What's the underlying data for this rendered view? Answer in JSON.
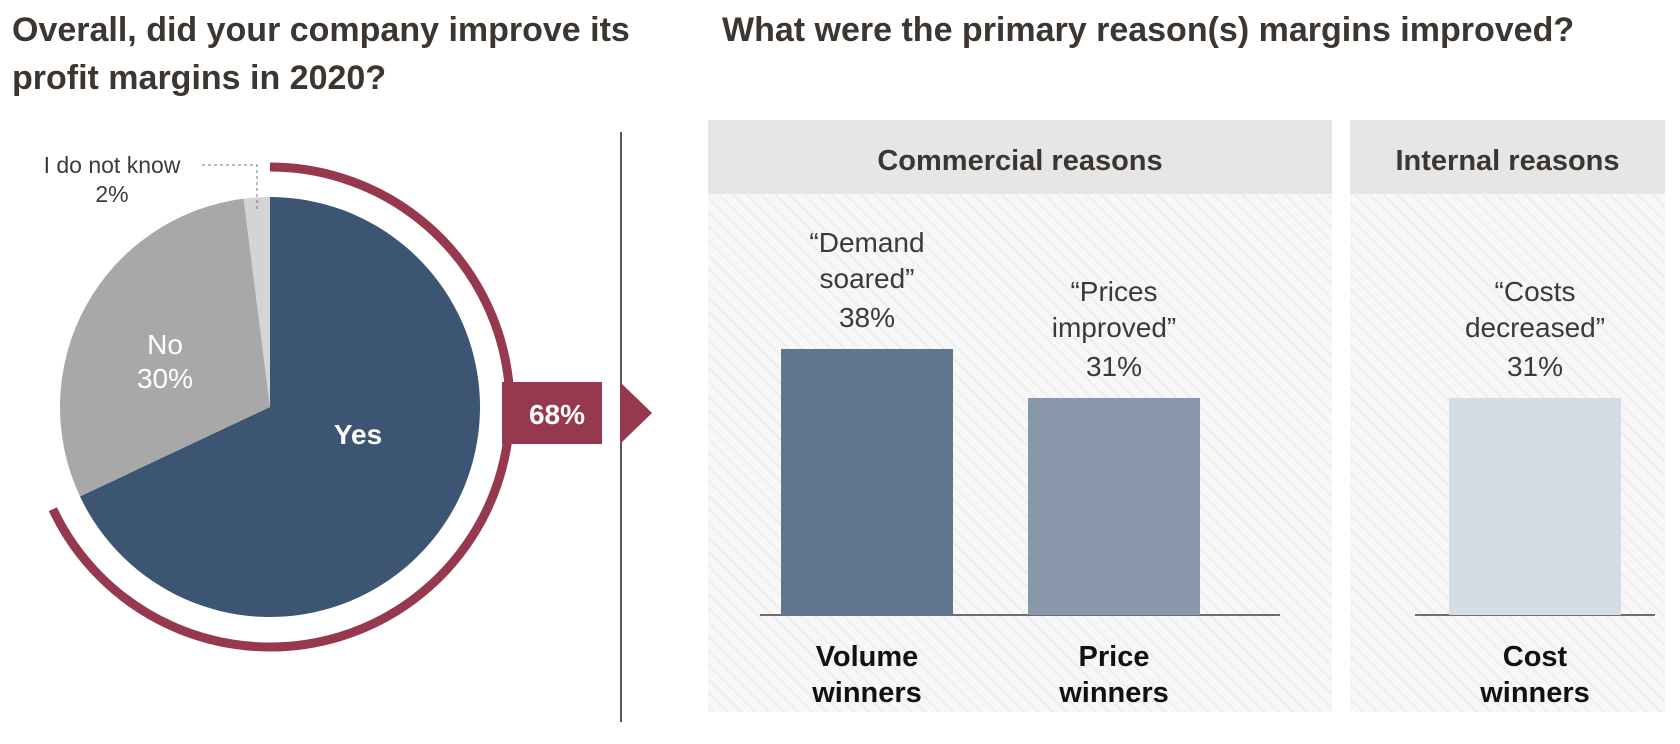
{
  "left": {
    "title": "Overall, did your company improve its profit margins in 2020?"
  },
  "right": {
    "title": "What were the primary reason(s) margins improved?"
  },
  "colors": {
    "yes": "#3b5573",
    "no": "#a8a8a8",
    "dont_know": "#d4d4d4",
    "highlight": "#96384e",
    "volume": "#60768e",
    "price": "#8898aa",
    "cost": "#d6dce4",
    "panel_header": "#e6e6e6",
    "title": "#3d3630"
  },
  "chart_data": [
    {
      "type": "pie",
      "slices": [
        {
          "label": "Yes",
          "value": 68
        },
        {
          "label": "No",
          "value": 30,
          "value_label": "30%"
        },
        {
          "label": "I do not know",
          "value": 2,
          "value_label": "2%"
        }
      ],
      "callout": "68%"
    },
    {
      "type": "bar",
      "groups": [
        {
          "header": "Commercial reasons",
          "bars": [
            0,
            1
          ]
        },
        {
          "header": "Internal reasons",
          "bars": [
            2
          ]
        }
      ],
      "bars": [
        {
          "category": [
            "Volume",
            "winners"
          ],
          "quote": [
            "“Demand",
            "soared”"
          ],
          "value": 38,
          "value_label": "38%"
        },
        {
          "category": [
            "Price",
            "winners"
          ],
          "quote": [
            "“Prices",
            "improved”"
          ],
          "value": 31,
          "value_label": "31%"
        },
        {
          "category": [
            "Cost",
            "winners"
          ],
          "quote": [
            "“Costs",
            "decreased”"
          ],
          "value": 31,
          "value_label": "31%"
        }
      ]
    }
  ]
}
